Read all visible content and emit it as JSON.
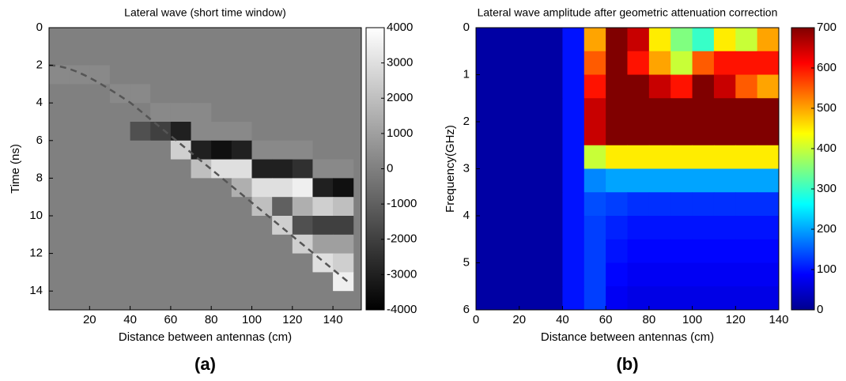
{
  "chart_data": [
    {
      "type": "heatmap",
      "title": "Lateral wave (short time window)",
      "caption": "(a)",
      "xlabel": "Distance between antennas (cm)",
      "ylabel": "Time (ns)",
      "xlim": [
        0,
        154
      ],
      "xticks": [
        20,
        40,
        60,
        80,
        100,
        120,
        140
      ],
      "ylim": [
        0,
        15
      ],
      "yticks": [
        0,
        2,
        4,
        6,
        8,
        10,
        12,
        14
      ],
      "y_inverted": true,
      "colormap": "gray",
      "clim": [
        -4000,
        4000
      ],
      "cticks": [
        4000,
        3000,
        2000,
        1000,
        0,
        -1000,
        -2000,
        -3000,
        -4000
      ],
      "x": [
        5,
        15,
        25,
        35,
        45,
        55,
        65,
        75,
        85,
        95,
        105,
        115,
        125,
        135,
        145
      ],
      "y": [
        0.5,
        1.5,
        2.5,
        3.5,
        4.5,
        5.5,
        6.5,
        7.5,
        8.5,
        9.5,
        10.5,
        11.5,
        12.5,
        13.5,
        14.5
      ],
      "values": [
        [
          0,
          0,
          0,
          0,
          0,
          0,
          0,
          0,
          0,
          0,
          0,
          0,
          0,
          0,
          0
        ],
        [
          0,
          0,
          0,
          0,
          0,
          0,
          0,
          0,
          0,
          0,
          0,
          0,
          0,
          0,
          0
        ],
        [
          300,
          300,
          300,
          0,
          0,
          0,
          0,
          0,
          0,
          0,
          0,
          0,
          0,
          0,
          0
        ],
        [
          0,
          0,
          0,
          300,
          300,
          0,
          0,
          0,
          0,
          0,
          0,
          0,
          0,
          0,
          0
        ],
        [
          0,
          0,
          0,
          0,
          0,
          300,
          300,
          300,
          0,
          0,
          0,
          0,
          0,
          0,
          0
        ],
        [
          0,
          0,
          0,
          0,
          -1500,
          -2000,
          -3000,
          300,
          300,
          300,
          0,
          0,
          0,
          0,
          0
        ],
        [
          0,
          0,
          0,
          0,
          0,
          0,
          2500,
          -3000,
          -3500,
          -3000,
          300,
          300,
          300,
          0,
          0
        ],
        [
          0,
          0,
          0,
          0,
          0,
          0,
          0,
          2000,
          3000,
          3000,
          -3000,
          -3000,
          -2500,
          300,
          300
        ],
        [
          0,
          0,
          0,
          0,
          0,
          0,
          0,
          0,
          0,
          1500,
          3000,
          3000,
          3500,
          -3000,
          -3500
        ],
        [
          0,
          0,
          0,
          0,
          0,
          0,
          0,
          0,
          0,
          0,
          2000,
          -1000,
          1500,
          2500,
          2000
        ],
        [
          0,
          0,
          0,
          0,
          0,
          0,
          0,
          0,
          0,
          0,
          0,
          2500,
          -1500,
          -2000,
          -2000
        ],
        [
          0,
          0,
          0,
          0,
          0,
          0,
          0,
          0,
          0,
          0,
          0,
          0,
          2500,
          1000,
          1000
        ],
        [
          0,
          0,
          0,
          0,
          0,
          0,
          0,
          0,
          0,
          0,
          0,
          0,
          0,
          3000,
          2500
        ],
        [
          0,
          0,
          0,
          0,
          0,
          0,
          0,
          0,
          0,
          0,
          0,
          0,
          0,
          0,
          3500
        ],
        [
          0,
          0,
          0,
          0,
          0,
          0,
          0,
          0,
          0,
          0,
          0,
          0,
          0,
          0,
          0
        ]
      ]
    },
    {
      "type": "heatmap",
      "title": "Lateral wave amplitude after geometric attenuation correction",
      "caption": "(b)",
      "xlabel": "Distance between antennas (cm)",
      "ylabel": "Frequency(GHz)",
      "xlim": [
        0,
        140
      ],
      "xticks": [
        0,
        20,
        40,
        60,
        80,
        100,
        120,
        140
      ],
      "ylim": [
        0,
        6
      ],
      "yticks": [
        0,
        1,
        2,
        3,
        4,
        5,
        6
      ],
      "y_inverted": true,
      "colormap": "jet",
      "clim": [
        0,
        700
      ],
      "cticks": [
        700,
        600,
        500,
        400,
        300,
        200,
        100,
        0
      ],
      "x": [
        5,
        15,
        25,
        35,
        45,
        55,
        65,
        75,
        85,
        95,
        105,
        115,
        125,
        135
      ],
      "y": [
        0.25,
        0.75,
        1.25,
        1.75,
        2.25,
        2.75,
        3.25,
        3.75,
        4.25,
        4.75,
        5.25,
        5.75
      ],
      "values": [
        [
          25,
          25,
          25,
          25,
          100,
          500,
          700,
          650,
          450,
          350,
          300,
          450,
          400,
          500
        ],
        [
          25,
          25,
          25,
          25,
          100,
          550,
          700,
          600,
          500,
          400,
          550,
          600,
          600,
          600
        ],
        [
          25,
          25,
          25,
          25,
          100,
          600,
          700,
          700,
          650,
          600,
          700,
          650,
          550,
          500
        ],
        [
          25,
          25,
          25,
          25,
          100,
          650,
          700,
          700,
          700,
          700,
          700,
          700,
          700,
          700
        ],
        [
          25,
          25,
          25,
          25,
          100,
          650,
          700,
          700,
          700,
          700,
          700,
          700,
          700,
          700
        ],
        [
          25,
          25,
          25,
          25,
          100,
          400,
          450,
          450,
          450,
          450,
          450,
          450,
          450,
          450
        ],
        [
          25,
          25,
          25,
          25,
          100,
          180,
          200,
          200,
          200,
          200,
          200,
          200,
          200,
          200
        ],
        [
          25,
          25,
          25,
          25,
          100,
          140,
          130,
          120,
          120,
          120,
          120,
          120,
          120,
          120
        ],
        [
          25,
          25,
          25,
          25,
          100,
          130,
          110,
          100,
          100,
          100,
          100,
          100,
          100,
          100
        ],
        [
          25,
          25,
          25,
          25,
          100,
          130,
          100,
          90,
          90,
          90,
          90,
          90,
          90,
          90
        ],
        [
          25,
          25,
          25,
          25,
          100,
          130,
          90,
          80,
          80,
          80,
          80,
          80,
          80,
          80
        ],
        [
          25,
          25,
          25,
          25,
          100,
          130,
          80,
          70,
          70,
          70,
          70,
          70,
          70,
          70
        ]
      ]
    }
  ]
}
